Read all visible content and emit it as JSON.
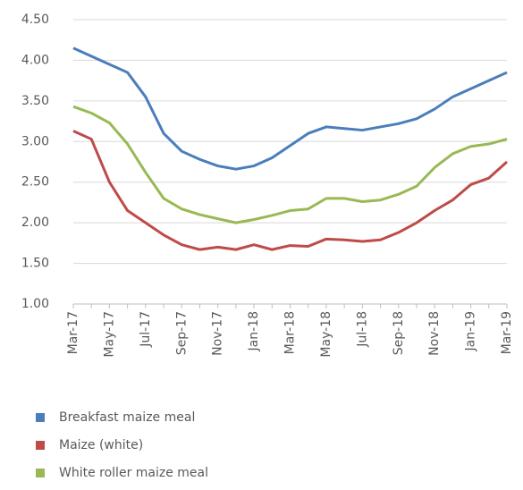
{
  "chart_data": {
    "type": "line",
    "categories": [
      "Mar-17",
      null,
      "May-17",
      null,
      "Jul-17",
      null,
      "Sep-17",
      null,
      "Nov-17",
      null,
      "Jan-18",
      null,
      "Mar-18",
      null,
      "May-18",
      null,
      "Jul-18",
      null,
      "Sep-18",
      null,
      "Nov-18",
      null,
      "Jan-19",
      null,
      "Mar-19"
    ],
    "series": [
      {
        "name": "Breakfast maize meal",
        "color": "#4a7ebb",
        "values": [
          4.15,
          4.05,
          3.95,
          3.85,
          3.55,
          3.1,
          2.88,
          2.78,
          2.7,
          2.66,
          2.7,
          2.8,
          2.95,
          3.1,
          3.18,
          3.16,
          3.14,
          3.18,
          3.22,
          3.28,
          3.4,
          3.55,
          3.65,
          3.75,
          3.85
        ]
      },
      {
        "name": "Maize (white)",
        "color": "#be4b48",
        "values": [
          3.13,
          3.03,
          2.5,
          2.15,
          2.0,
          1.85,
          1.73,
          1.67,
          1.7,
          1.67,
          1.73,
          1.67,
          1.72,
          1.71,
          1.8,
          1.79,
          1.77,
          1.79,
          1.88,
          2.0,
          2.15,
          2.28,
          2.47,
          2.55,
          2.75
        ]
      },
      {
        "name": "White roller maize meal",
        "color": "#98b954",
        "values": [
          3.43,
          3.35,
          3.23,
          2.97,
          2.62,
          2.3,
          2.17,
          2.1,
          2.05,
          2.0,
          2.04,
          2.09,
          2.15,
          2.17,
          2.3,
          2.3,
          2.26,
          2.28,
          2.35,
          2.45,
          2.68,
          2.85,
          2.94,
          2.97,
          3.03
        ]
      }
    ],
    "ylim": [
      1,
      4.5
    ],
    "yticks": [
      {
        "value": 1,
        "label": "1.00"
      },
      {
        "value": 1.5,
        "label": "1.50"
      },
      {
        "value": 2,
        "label": "2.00"
      },
      {
        "value": 2.5,
        "label": "2.50"
      },
      {
        "value": 3,
        "label": "3.00"
      },
      {
        "value": 3.5,
        "label": "3.50"
      },
      {
        "value": 4,
        "label": "4.00"
      },
      {
        "value": 4.5,
        "label": "4.50"
      }
    ],
    "grid": true,
    "legend": "bottom"
  }
}
